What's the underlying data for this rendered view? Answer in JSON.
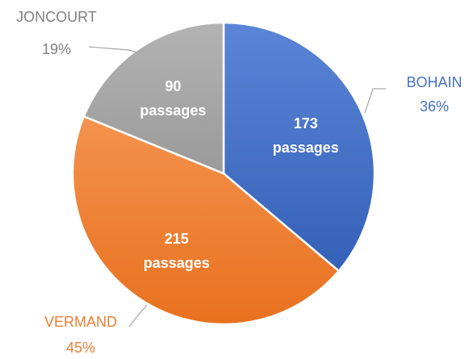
{
  "chart_data": {
    "type": "pie",
    "categories": [
      "BOHAIN",
      "VERMAND",
      "JONCOURT"
    ],
    "values": [
      173,
      215,
      90
    ],
    "value_labels": [
      [
        "173",
        "passages"
      ],
      [
        "215",
        "passages"
      ],
      [
        "90",
        "passages"
      ]
    ],
    "percentages": [
      36,
      45,
      19
    ],
    "percentage_labels": [
      "36%",
      "45%",
      "19%"
    ],
    "colors": [
      "#4472c4",
      "#ed7d31",
      "#a5a5a5"
    ],
    "label_colors": [
      "#4472c4",
      "#ed7d31",
      "#7f7f7f"
    ]
  }
}
